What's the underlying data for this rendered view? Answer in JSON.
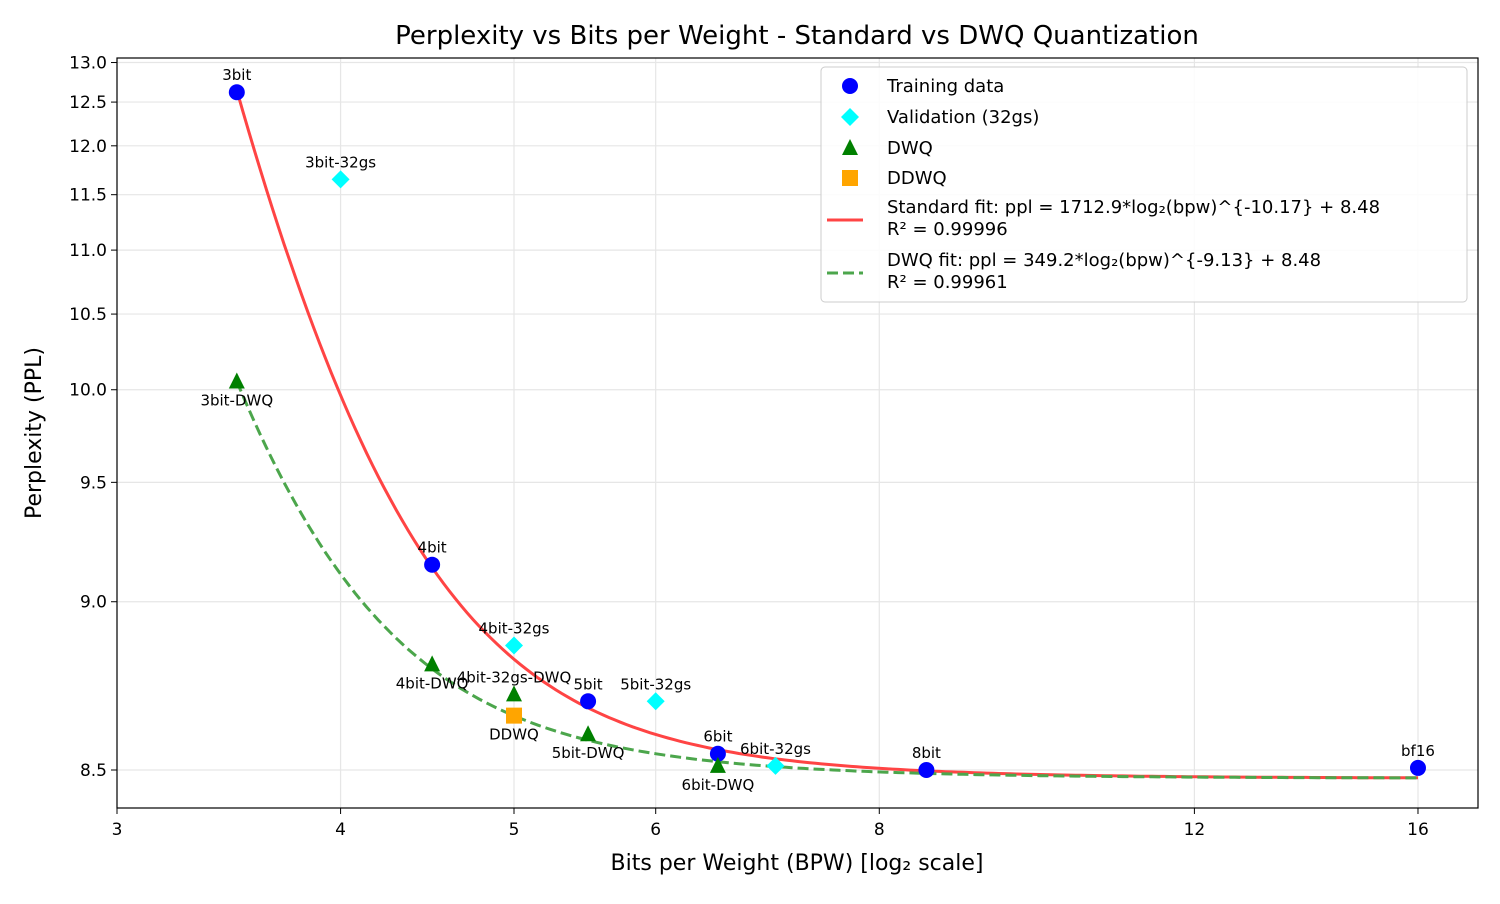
{
  "chart_data": {
    "type": "scatter",
    "title": "Perplexity vs Bits per Weight - Standard vs DWQ Quantization",
    "xlabel": "Bits per Weight (BPW) [log₂ scale]",
    "ylabel": "Perplexity (PPL)",
    "xscale": "log2",
    "yscale": "log(ppl - 7.5)",
    "xlim": [
      3,
      17.3
    ],
    "ylim": [
      8.41,
      13.06
    ],
    "xticks": [
      3,
      4,
      5,
      6,
      8,
      12,
      16
    ],
    "yticks": [
      "8.5",
      "9.0",
      "9.5",
      "10.0",
      "10.5",
      "11.0",
      "11.5",
      "12.0",
      "12.5",
      "13.0"
    ],
    "grid": true,
    "legend_position": "top-right",
    "series": [
      {
        "name": "Training data",
        "marker": "circle",
        "color": "#0000ff",
        "points": [
          {
            "x": 3.5,
            "y": 12.62,
            "label": "3bit",
            "label_pos": "above"
          },
          {
            "x": 4.5,
            "y": 9.14,
            "label": "4bit",
            "label_pos": "above"
          },
          {
            "x": 5.5,
            "y": 8.68,
            "label": "5bit",
            "label_pos": "above"
          },
          {
            "x": 6.5,
            "y": 8.54,
            "label": "6bit",
            "label_pos": "above"
          },
          {
            "x": 8.5,
            "y": 8.5,
            "label": "8bit",
            "label_pos": "above"
          },
          {
            "x": 16,
            "y": 8.505,
            "label": "bf16",
            "label_pos": "above"
          }
        ]
      },
      {
        "name": "Validation (32gs)",
        "marker": "diamond",
        "color": "#00ffff",
        "points": [
          {
            "x": 4.0,
            "y": 11.65,
            "label": "3bit-32gs",
            "label_pos": "above"
          },
          {
            "x": 5.0,
            "y": 8.85,
            "label": "4bit-32gs",
            "label_pos": "above"
          },
          {
            "x": 6.0,
            "y": 8.68,
            "label": "5bit-32gs",
            "label_pos": "above"
          },
          {
            "x": 7.0,
            "y": 8.51,
            "label": "6bit-32gs",
            "label_pos": "above"
          }
        ]
      },
      {
        "name": "DWQ",
        "marker": "triangle",
        "color": "#008000",
        "points": [
          {
            "x": 3.5,
            "y": 10.05,
            "label": "3bit-DWQ",
            "label_pos": "below"
          },
          {
            "x": 4.5,
            "y": 8.79,
            "label": "4bit-DWQ",
            "label_pos": "below"
          },
          {
            "x": 5.0,
            "y": 8.7,
            "label": "4bit-32gs-DWQ",
            "label_pos": "above"
          },
          {
            "x": 5.5,
            "y": 8.59,
            "label": "5bit-DWQ",
            "label_pos": "below"
          },
          {
            "x": 6.5,
            "y": 8.51,
            "label": "6bit-DWQ",
            "label_pos": "below"
          }
        ]
      },
      {
        "name": "DDWQ",
        "marker": "square",
        "color": "#ffa500",
        "points": [
          {
            "x": 5.0,
            "y": 8.64,
            "label": "DDWQ",
            "label_pos": "below"
          }
        ]
      }
    ],
    "fits": [
      {
        "name": "Standard fit: ppl = 1712.9*log₂(bpw)^{-10.17} + 8.48",
        "r2_label": "R² = 0.99996",
        "a": 1712.9,
        "b": -10.17,
        "c": 8.48,
        "x_range": [
          3.5,
          16
        ],
        "color": "#ff4444",
        "style": "solid"
      },
      {
        "name": "DWQ fit: ppl = 349.2*log₂(bpw)^{-9.13} + 8.48",
        "r2_label": "R² = 0.99961",
        "a": 349.2,
        "b": -9.13,
        "c": 8.48,
        "x_range": [
          3.5,
          16
        ],
        "color": "#4ca64c",
        "style": "dashed"
      }
    ]
  }
}
